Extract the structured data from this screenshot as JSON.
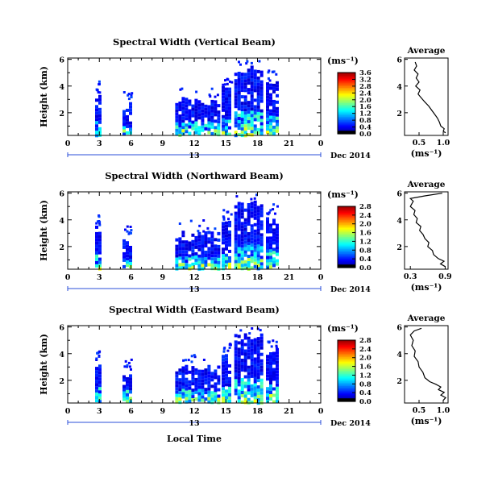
{
  "chart_data": {
    "type": "heatmap",
    "date_label": "Dec 2014",
    "xlabel": "Local Time",
    "ylabel": "Height (km)",
    "unit_label": "(ms⁻¹)",
    "x_ticks": [
      "0",
      "3",
      "6",
      "9",
      "12",
      "15",
      "18",
      "21",
      "0"
    ],
    "day_label": "13",
    "y_ticks": [
      "6",
      "4",
      "2"
    ],
    "panels": [
      {
        "title": "Spectral Width (Vertical Beam)",
        "colorbar_ticks": [
          "3.6",
          "3.2",
          "2.8",
          "2.4",
          "2.0",
          "1.6",
          "1.2",
          "0.8",
          "0.4",
          "0.0"
        ],
        "colorbar_max": 3.6,
        "profile": {
          "title": "Average",
          "x_ticks": [
            "0.5",
            "1.0"
          ],
          "xlim": [
            0.2,
            1.1
          ],
          "points": [
            [
              0.42,
              5.8
            ],
            [
              0.45,
              5.5
            ],
            [
              0.4,
              5.2
            ],
            [
              0.48,
              4.9
            ],
            [
              0.44,
              4.6
            ],
            [
              0.5,
              4.3
            ],
            [
              0.43,
              4.0
            ],
            [
              0.52,
              3.7
            ],
            [
              0.48,
              3.4
            ],
            [
              0.55,
              3.1
            ],
            [
              0.62,
              2.8
            ],
            [
              0.7,
              2.5
            ],
            [
              0.76,
              2.2
            ],
            [
              0.82,
              1.9
            ],
            [
              0.88,
              1.6
            ],
            [
              0.92,
              1.3
            ],
            [
              0.95,
              1.0
            ],
            [
              1.02,
              0.8
            ],
            [
              1.0,
              0.6
            ],
            [
              1.05,
              0.5
            ]
          ],
          "ylim": [
            0.3,
            6.1
          ]
        }
      },
      {
        "title": "Spectral Width (Northward Beam)",
        "colorbar_ticks": [
          "2.8",
          "2.4",
          "2.0",
          "1.6",
          "1.2",
          "0.8",
          "0.4",
          "0.0"
        ],
        "colorbar_max": 2.8,
        "profile": {
          "title": "Average",
          "x_ticks": [
            "0.3",
            "0.9"
          ],
          "xlim": [
            0.2,
            0.95
          ],
          "points": [
            [
              0.85,
              6.0
            ],
            [
              0.55,
              5.8
            ],
            [
              0.3,
              5.6
            ],
            [
              0.35,
              5.4
            ],
            [
              0.3,
              5.0
            ],
            [
              0.38,
              4.7
            ],
            [
              0.36,
              4.4
            ],
            [
              0.42,
              4.1
            ],
            [
              0.4,
              3.8
            ],
            [
              0.48,
              3.5
            ],
            [
              0.46,
              3.2
            ],
            [
              0.52,
              2.9
            ],
            [
              0.55,
              2.6
            ],
            [
              0.62,
              2.3
            ],
            [
              0.6,
              2.0
            ],
            [
              0.68,
              1.7
            ],
            [
              0.7,
              1.4
            ],
            [
              0.78,
              1.1
            ],
            [
              0.88,
              0.9
            ],
            [
              0.82,
              0.7
            ],
            [
              0.9,
              0.5
            ]
          ],
          "ylim": [
            0.3,
            6.1
          ]
        }
      },
      {
        "title": "Spectral Width (Eastward Beam)",
        "colorbar_ticks": [
          "2.8",
          "2.4",
          "2.0",
          "1.6",
          "1.2",
          "0.8",
          "0.4",
          "0.0"
        ],
        "colorbar_max": 2.8,
        "profile": {
          "title": "Average",
          "x_ticks": [
            "0.5",
            "1.0"
          ],
          "xlim": [
            0.2,
            1.1
          ],
          "points": [
            [
              0.55,
              5.9
            ],
            [
              0.4,
              5.7
            ],
            [
              0.32,
              5.4
            ],
            [
              0.38,
              5.0
            ],
            [
              0.35,
              4.6
            ],
            [
              0.42,
              4.2
            ],
            [
              0.4,
              3.8
            ],
            [
              0.48,
              3.4
            ],
            [
              0.5,
              3.0
            ],
            [
              0.58,
              2.6
            ],
            [
              0.62,
              2.2
            ],
            [
              0.72,
              1.9
            ],
            [
              0.85,
              1.7
            ],
            [
              0.95,
              1.5
            ],
            [
              0.9,
              1.3
            ],
            [
              1.02,
              1.1
            ],
            [
              0.95,
              0.9
            ],
            [
              1.05,
              0.7
            ],
            [
              1.0,
              0.5
            ]
          ],
          "ylim": [
            0.3,
            6.1
          ]
        }
      }
    ],
    "time_range_hours": [
      0,
      24
    ],
    "height_range_km": [
      0.3,
      6.1
    ],
    "data_blocks": [
      {
        "t0": 2.6,
        "t1": 2.95,
        "h0": 0.4,
        "h1": 3.6
      },
      {
        "t0": 5.2,
        "t1": 6.0,
        "h0": 0.5,
        "h1": 2.8
      },
      {
        "t0": 10.2,
        "t1": 14.2,
        "h0": 0.4,
        "h1": 3.2
      },
      {
        "t0": 14.6,
        "t1": 15.5,
        "h0": 0.4,
        "h1": 4.0
      },
      {
        "t0": 15.8,
        "t1": 18.3,
        "h0": 0.4,
        "h1": 5.6
      },
      {
        "t0": 18.8,
        "t1": 19.8,
        "h0": 0.5,
        "h1": 4.5
      }
    ]
  }
}
